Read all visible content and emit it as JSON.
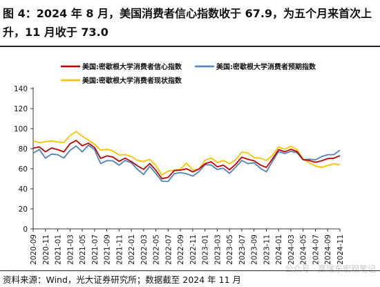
{
  "title": "图 4：2024 年 8 月，美国消费者信心指数收于 67.9，为五个月来首次上升，11 月收于 73.0",
  "source": "资料来源：Wind，光大证券研究所；数据截至 2024 年 11 月",
  "watermark": "公众号 · 高瑞东宏观笔记",
  "chart_data": {
    "type": "line",
    "title": "",
    "xlabel": "",
    "ylabel": "",
    "ylim": [
      0,
      140
    ],
    "yticks": [
      0,
      20,
      40,
      60,
      80,
      100,
      120,
      140
    ],
    "grid": false,
    "legend_position": "top",
    "x": [
      "2020-09",
      "2020-10",
      "2020-11",
      "2020-12",
      "2021-01",
      "2021-02",
      "2021-03",
      "2021-04",
      "2021-05",
      "2021-06",
      "2021-07",
      "2021-08",
      "2021-09",
      "2021-10",
      "2021-11",
      "2021-12",
      "2022-01",
      "2022-02",
      "2022-03",
      "2022-04",
      "2022-05",
      "2022-06",
      "2022-07",
      "2022-08",
      "2022-09",
      "2022-10",
      "2022-11",
      "2022-12",
      "2023-01",
      "2023-02",
      "2023-03",
      "2023-04",
      "2023-05",
      "2023-06",
      "2023-07",
      "2023-08",
      "2023-09",
      "2023-10",
      "2023-11",
      "2023-12",
      "2024-01",
      "2024-02",
      "2024-03",
      "2024-04",
      "2024-05",
      "2024-06",
      "2024-07",
      "2024-08",
      "2024-09",
      "2024-10",
      "2024-11"
    ],
    "xtick_labels": [
      "2020-09",
      "2020-11",
      "2021-01",
      "2021-03",
      "2021-05",
      "2021-07",
      "2021-09",
      "2021-11",
      "2022-01",
      "2022-03",
      "2022-05",
      "2022-07",
      "2022-09",
      "2022-11",
      "2023-01",
      "2023-03",
      "2023-05",
      "2023-07",
      "2023-09",
      "2023-11",
      "2024-01",
      "2024-03",
      "2024-05",
      "2024-07",
      "2024-09",
      "2024-11"
    ],
    "series": [
      {
        "name": "美国:密歇根大学消费者信心指数",
        "color": "#c00000",
        "values": [
          80.4,
          81.8,
          76.9,
          80.7,
          79.0,
          76.8,
          84.9,
          88.3,
          82.9,
          85.5,
          81.2,
          70.3,
          72.8,
          71.7,
          67.4,
          70.6,
          67.2,
          62.8,
          59.4,
          65.2,
          58.4,
          50.0,
          51.5,
          58.2,
          58.6,
          59.9,
          56.8,
          59.7,
          64.9,
          67.0,
          62.0,
          63.5,
          59.0,
          64.4,
          71.5,
          69.4,
          67.9,
          63.8,
          61.3,
          69.7,
          79.0,
          76.9,
          79.4,
          77.2,
          69.1,
          68.2,
          66.4,
          67.9,
          70.1,
          70.5,
          73.0
        ]
      },
      {
        "name": "美国:密歇根大学消费者预期指数",
        "color": "#4f81bd",
        "values": [
          75.6,
          79.2,
          70.5,
          74.6,
          74.0,
          70.7,
          78.3,
          82.7,
          76.8,
          83.5,
          79.0,
          65.1,
          68.1,
          67.9,
          63.5,
          68.3,
          65.9,
          59.4,
          54.3,
          62.5,
          55.2,
          47.5,
          47.3,
          55.1,
          56.2,
          55.0,
          52.7,
          57.0,
          64.1,
          63.7,
          59.3,
          60.5,
          55.4,
          61.5,
          68.3,
          65.1,
          66.0,
          60.7,
          56.9,
          67.4,
          77.1,
          75.2,
          77.4,
          76.0,
          68.8,
          69.6,
          68.8,
          72.1,
          74.1,
          74.1,
          78.5
        ]
      },
      {
        "name": "美国:密歇根大学消费者现状指数",
        "color": "#ffc000",
        "values": [
          87.8,
          85.9,
          87.0,
          87.7,
          86.7,
          86.2,
          93.0,
          97.2,
          92.4,
          88.6,
          84.5,
          78.5,
          79.4,
          77.7,
          73.6,
          74.2,
          72.0,
          68.2,
          67.2,
          69.4,
          63.3,
          53.8,
          57.7,
          58.6,
          59.7,
          65.6,
          58.8,
          59.4,
          68.4,
          70.7,
          66.3,
          68.2,
          64.9,
          69.0,
          76.6,
          75.7,
          71.1,
          70.6,
          68.3,
          73.3,
          81.9,
          79.4,
          82.5,
          79.0,
          69.6,
          65.9,
          62.7,
          61.3,
          63.3,
          64.9,
          63.9
        ]
      }
    ]
  }
}
